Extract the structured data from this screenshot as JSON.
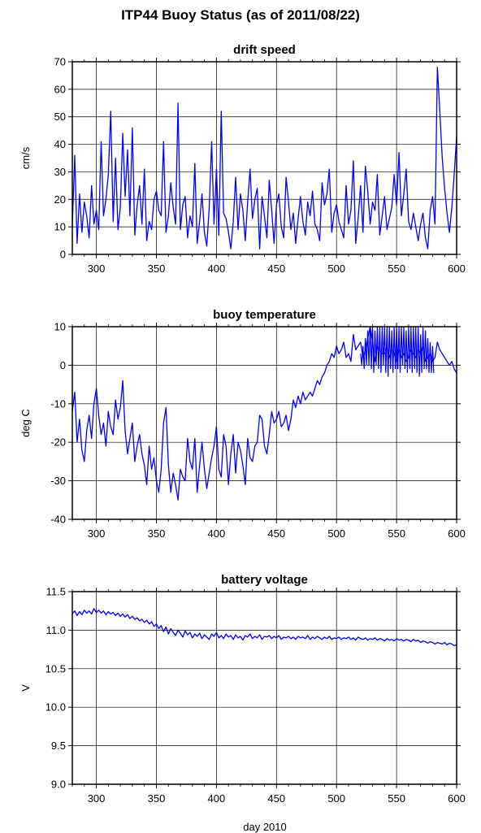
{
  "page": {
    "title": "ITP44 Buoy Status (as of 2011/08/22)",
    "xlabel": "day 2010"
  },
  "style": {
    "line_color": "#0000ff",
    "grid_color": "#000000",
    "frame_color": "#000000"
  },
  "chart_data": [
    {
      "id": "drift",
      "type": "line",
      "title": "drift speed",
      "ylabel": "cm/s",
      "xlim": [
        280,
        600
      ],
      "ylim": [
        0,
        70
      ],
      "xticks": [
        300,
        350,
        400,
        450,
        500,
        550,
        600
      ],
      "yticks": [
        0,
        10,
        20,
        30,
        40,
        50,
        60,
        70
      ],
      "grid": true,
      "series": [
        {
          "values_x": [
            280,
            282,
            284,
            286,
            288,
            290,
            292,
            294,
            296,
            298,
            300,
            302,
            304,
            306,
            308,
            310,
            312,
            314,
            316,
            318,
            320,
            322,
            324,
            326,
            328,
            330,
            332,
            334,
            336,
            338,
            340,
            342,
            344,
            346,
            348,
            350,
            352,
            354,
            356,
            358,
            360,
            362,
            364,
            366,
            368,
            370,
            372,
            374,
            376,
            378,
            380,
            382,
            384,
            386,
            388,
            390,
            392,
            394,
            396,
            398,
            400,
            402,
            404,
            406,
            408,
            410,
            412,
            414,
            416,
            418,
            420,
            422,
            424,
            426,
            428,
            430,
            432,
            434,
            436,
            438,
            440,
            442,
            444,
            446,
            448,
            450,
            452,
            454,
            456,
            458,
            460,
            462,
            464,
            466,
            468,
            470,
            472,
            474,
            476,
            478,
            480,
            482,
            484,
            486,
            488,
            490,
            492,
            494,
            496,
            498,
            500,
            502,
            504,
            506,
            508,
            510,
            512,
            514,
            516,
            518,
            520,
            522,
            524,
            526,
            528,
            530,
            532,
            534,
            536,
            538,
            540,
            542,
            544,
            546,
            548,
            550,
            552,
            554,
            556,
            558,
            560,
            562,
            564,
            566,
            568,
            570,
            572,
            574,
            576,
            578,
            580,
            582,
            584,
            586,
            588,
            590,
            592,
            594,
            596,
            598,
            600
          ],
          "values_y": [
            10,
            36,
            4,
            22,
            8,
            19,
            14,
            6,
            25,
            11,
            16,
            9,
            41,
            14,
            20,
            29,
            52,
            12,
            35,
            9,
            17,
            44,
            21,
            38,
            14,
            46,
            7,
            18,
            25,
            11,
            31,
            5,
            12,
            9,
            20,
            23,
            16,
            14,
            41,
            8,
            14,
            26,
            17,
            11,
            55,
            9,
            18,
            21,
            6,
            14,
            10,
            33,
            4,
            12,
            22,
            8,
            3,
            17,
            41,
            11,
            31,
            7,
            52,
            15,
            13,
            8,
            2,
            12,
            28,
            9,
            22,
            16,
            5,
            19,
            31,
            13,
            20,
            24,
            2,
            21,
            14,
            6,
            27,
            16,
            4,
            18,
            22,
            10,
            6,
            28,
            19,
            9,
            15,
            4,
            13,
            21,
            12,
            7,
            19,
            14,
            23,
            11,
            9,
            5,
            26,
            18,
            22,
            31,
            8,
            15,
            18,
            12,
            9,
            6,
            25,
            11,
            16,
            34,
            4,
            13,
            25,
            8,
            32,
            23,
            11,
            19,
            16,
            29,
            7,
            14,
            21,
            9,
            13,
            17,
            29,
            18,
            37,
            14,
            22,
            31,
            12,
            9,
            15,
            10,
            5,
            11,
            15,
            6,
            2,
            16,
            21,
            11,
            68,
            52,
            35,
            24,
            15,
            8,
            17,
            29,
            43
          ]
        }
      ]
    },
    {
      "id": "temp",
      "type": "line",
      "title": "buoy temperature",
      "ylabel": "deg C",
      "xlim": [
        280,
        600
      ],
      "ylim": [
        -40,
        10
      ],
      "xticks": [
        300,
        350,
        400,
        450,
        500,
        550,
        600
      ],
      "yticks": [
        -40,
        -30,
        -20,
        -10,
        0,
        10
      ],
      "grid": true,
      "series": [
        {
          "values_x": [
            280,
            282,
            284,
            286,
            288,
            290,
            292,
            294,
            296,
            298,
            300,
            302,
            304,
            306,
            308,
            310,
            312,
            314,
            316,
            318,
            320,
            322,
            324,
            326,
            328,
            330,
            332,
            334,
            336,
            338,
            340,
            342,
            344,
            346,
            348,
            350,
            352,
            354,
            356,
            358,
            360,
            362,
            364,
            366,
            368,
            370,
            372,
            374,
            376,
            378,
            380,
            382,
            384,
            386,
            388,
            390,
            392,
            394,
            396,
            398,
            400,
            402,
            404,
            406,
            408,
            410,
            412,
            414,
            416,
            418,
            420,
            422,
            424,
            426,
            428,
            430,
            432,
            434,
            436,
            438,
            440,
            442,
            444,
            446,
            448,
            450,
            452,
            454,
            456,
            458,
            460,
            462,
            464,
            466,
            468,
            470,
            472,
            474,
            476,
            478,
            480,
            482,
            484,
            486,
            488,
            490,
            492,
            494,
            496,
            498,
            500,
            502,
            504,
            506,
            508,
            510,
            512,
            514,
            516,
            518,
            520,
            522,
            524,
            526,
            528,
            530,
            532,
            534,
            536,
            538,
            540,
            542,
            544,
            546,
            548,
            550,
            552,
            554,
            556,
            558,
            560,
            562,
            564,
            566,
            568,
            570,
            572,
            574,
            576,
            578,
            580,
            582,
            584,
            586,
            588,
            590,
            592,
            594,
            596,
            598,
            600
          ],
          "values_y": [
            -12,
            -7,
            -20,
            -14,
            -22,
            -25,
            -17,
            -13,
            -19,
            -10,
            -6,
            -13,
            -18,
            -15,
            -21,
            -12,
            -16,
            -18,
            -9,
            -14,
            -11,
            -4,
            -17,
            -23,
            -19,
            -15,
            -25,
            -21,
            -18,
            -23,
            -26,
            -31,
            -21,
            -27,
            -24,
            -30,
            -33,
            -27,
            -15,
            -11,
            -26,
            -33,
            -28,
            -31,
            -35,
            -27,
            -29,
            -30,
            -19,
            -25,
            -27,
            -19,
            -33,
            -26,
            -20,
            -27,
            -32,
            -28,
            -24,
            -21,
            -16,
            -27,
            -29,
            -18,
            -21,
            -31,
            -23,
            -18,
            -28,
            -20,
            -22,
            -26,
            -31,
            -19,
            -24,
            -25,
            -21,
            -20,
            -13,
            -14,
            -21,
            -23,
            -18,
            -12,
            -15,
            -14,
            -12,
            -16,
            -15,
            -13,
            -17,
            -14,
            -9,
            -11,
            -8,
            -10,
            -7,
            -9,
            -8,
            -7,
            -8,
            -6,
            -4,
            -5,
            -3,
            -2,
            0,
            1,
            3,
            2,
            5,
            3,
            4,
            6,
            2,
            3,
            1,
            8,
            4,
            5,
            6,
            2,
            4,
            7,
            10,
            6,
            1,
            5,
            4,
            3,
            3,
            5,
            2,
            4,
            3,
            1,
            4,
            2,
            3,
            1,
            2,
            4,
            3,
            2,
            4,
            3,
            5,
            1,
            2,
            3,
            1,
            2,
            6,
            4,
            3,
            2,
            1,
            0,
            1,
            -1,
            -2
          ],
          "band": {
            "x_start": 520,
            "x_end": 580,
            "low": [
              0,
              -1,
              0,
              0,
              -1,
              -2,
              0,
              -1,
              -2,
              0,
              -2,
              -3,
              -1,
              -2,
              -1,
              -1,
              -2,
              0,
              -1,
              -2,
              -1,
              -2,
              -1,
              -2,
              -3,
              -2,
              -1,
              -1,
              -2,
              -2,
              -2
            ],
            "high": [
              3,
              5,
              7,
              9,
              10,
              10,
              9,
              10,
              10,
              10,
              10,
              10,
              10,
              9,
              10,
              10,
              10,
              10,
              10,
              9,
              10,
              10,
              10,
              10,
              10,
              8,
              10,
              9,
              7,
              6,
              5
            ]
          }
        }
      ]
    },
    {
      "id": "volt",
      "type": "line",
      "title": "battery voltage",
      "ylabel": "V",
      "xlim": [
        280,
        600
      ],
      "ylim": [
        9.0,
        11.5
      ],
      "xticks": [
        300,
        350,
        400,
        450,
        500,
        550,
        600
      ],
      "yticks": [
        9.0,
        9.5,
        10.0,
        10.5,
        11.0,
        11.5
      ],
      "ytick_labels": [
        "9.0",
        "9.5",
        "10.0",
        "10.5",
        "11.0",
        "11.5"
      ],
      "grid": true,
      "series": [
        {
          "values_x": [
            280,
            282,
            284,
            286,
            288,
            290,
            292,
            294,
            296,
            298,
            300,
            302,
            304,
            306,
            308,
            310,
            312,
            314,
            316,
            318,
            320,
            322,
            324,
            326,
            328,
            330,
            332,
            334,
            336,
            338,
            340,
            342,
            344,
            346,
            348,
            350,
            352,
            354,
            356,
            358,
            360,
            362,
            364,
            366,
            368,
            370,
            372,
            374,
            376,
            378,
            380,
            382,
            384,
            386,
            388,
            390,
            392,
            394,
            396,
            398,
            400,
            402,
            404,
            406,
            408,
            410,
            412,
            414,
            416,
            418,
            420,
            422,
            424,
            426,
            428,
            430,
            432,
            434,
            436,
            438,
            440,
            442,
            444,
            446,
            448,
            450,
            452,
            454,
            456,
            458,
            460,
            462,
            464,
            466,
            468,
            470,
            472,
            474,
            476,
            478,
            480,
            482,
            484,
            486,
            488,
            490,
            492,
            494,
            496,
            498,
            500,
            502,
            504,
            506,
            508,
            510,
            512,
            514,
            516,
            518,
            520,
            522,
            524,
            526,
            528,
            530,
            532,
            534,
            536,
            538,
            540,
            542,
            544,
            546,
            548,
            550,
            552,
            554,
            556,
            558,
            560,
            562,
            564,
            566,
            568,
            570,
            572,
            574,
            576,
            578,
            580,
            582,
            584,
            586,
            588,
            590,
            592,
            594,
            596,
            598,
            600
          ],
          "values_y": [
            11.21,
            11.25,
            11.19,
            11.24,
            11.2,
            11.26,
            11.22,
            11.25,
            11.21,
            11.28,
            11.23,
            11.26,
            11.22,
            11.25,
            11.2,
            11.24,
            11.21,
            11.23,
            11.19,
            11.22,
            11.18,
            11.21,
            11.17,
            11.2,
            11.15,
            11.18,
            11.14,
            11.16,
            11.12,
            11.14,
            11.1,
            11.13,
            11.08,
            11.11,
            11.05,
            11.08,
            11.02,
            11.06,
            10.98,
            11.04,
            10.95,
            11.02,
            10.97,
            10.93,
            11.0,
            10.96,
            10.91,
            10.99,
            10.94,
            10.97,
            10.9,
            10.95,
            10.92,
            10.96,
            10.89,
            10.94,
            10.91,
            10.88,
            10.95,
            10.92,
            10.97,
            10.9,
            10.93,
            10.89,
            10.95,
            10.91,
            10.93,
            10.88,
            10.94,
            10.9,
            10.92,
            10.87,
            10.93,
            10.91,
            10.95,
            10.89,
            10.92,
            10.9,
            10.94,
            10.88,
            10.92,
            10.91,
            10.93,
            10.89,
            10.92,
            10.9,
            10.93,
            10.88,
            10.91,
            10.9,
            10.92,
            10.89,
            10.91,
            10.88,
            10.92,
            10.9,
            10.91,
            10.89,
            10.93,
            10.88,
            10.91,
            10.89,
            10.92,
            10.9,
            10.88,
            10.91,
            10.89,
            10.92,
            10.88,
            10.9,
            10.89,
            10.91,
            10.88,
            10.9,
            10.89,
            10.91,
            10.88,
            10.9,
            10.87,
            10.91,
            10.89,
            10.88,
            10.9,
            10.87,
            10.89,
            10.88,
            10.9,
            10.87,
            10.89,
            10.88,
            10.86,
            10.89,
            10.87,
            10.88,
            10.86,
            10.89,
            10.87,
            10.88,
            10.86,
            10.88,
            10.87,
            10.85,
            10.88,
            10.86,
            10.87,
            10.84,
            10.86,
            10.85,
            10.83,
            10.85,
            10.84,
            10.82,
            10.84,
            10.83,
            10.82,
            10.84,
            10.81,
            10.83,
            10.82,
            10.8,
            10.81
          ]
        }
      ]
    }
  ]
}
